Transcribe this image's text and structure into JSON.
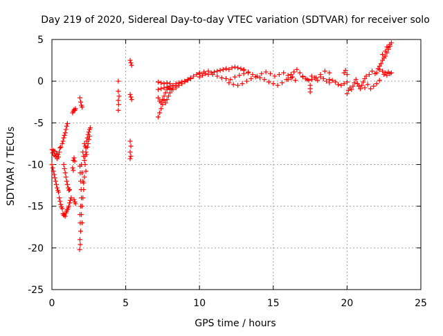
{
  "chart_data": {
    "type": "scatter",
    "title": "Day 219 of 2020, Sidereal Day-to-day VTEC variation (SDTVAR) for receiver solo",
    "xlabel": "GPS time / hours",
    "ylabel": "SDTVAR / TECUs",
    "xlim": [
      0,
      25
    ],
    "ylim": [
      -25,
      5
    ],
    "xticks": [
      0,
      5,
      10,
      15,
      20,
      25
    ],
    "yticks": [
      -25,
      -20,
      -15,
      -10,
      -5,
      0,
      5
    ],
    "grid": true,
    "marker": "+",
    "colors": {
      "series": "#ff0000",
      "grid": "#a0a0a0",
      "axis": "#000000"
    },
    "series": [
      {
        "name": "SDTVAR",
        "points": [
          [
            0.0,
            -8.2
          ],
          [
            0.05,
            -8.6
          ],
          [
            0.1,
            -8.3
          ],
          [
            0.15,
            -8.9
          ],
          [
            0.2,
            -8.4
          ],
          [
            0.25,
            -9.0
          ],
          [
            0.3,
            -8.7
          ],
          [
            0.35,
            -9.3
          ],
          [
            0.4,
            -8.8
          ],
          [
            0.45,
            -9.1
          ],
          [
            0.5,
            -8.5
          ],
          [
            0.55,
            -8.0
          ],
          [
            0.6,
            -7.9
          ],
          [
            0.0,
            -10.0
          ],
          [
            0.05,
            -10.4
          ],
          [
            0.1,
            -10.8
          ],
          [
            0.15,
            -11.2
          ],
          [
            0.2,
            -11.6
          ],
          [
            0.25,
            -12.0
          ],
          [
            0.3,
            -12.4
          ],
          [
            0.35,
            -12.8
          ],
          [
            0.4,
            -13.1
          ],
          [
            0.45,
            -13.3
          ],
          [
            0.5,
            -14.0
          ],
          [
            0.55,
            -14.4
          ],
          [
            0.6,
            -14.8
          ],
          [
            0.65,
            -15.1
          ],
          [
            0.7,
            -15.3
          ],
          [
            0.75,
            -15.9
          ],
          [
            0.8,
            -16.1
          ],
          [
            0.85,
            -16.0
          ],
          [
            0.9,
            -16.2
          ],
          [
            0.95,
            -15.8
          ],
          [
            1.0,
            -15.6
          ],
          [
            1.05,
            -15.4
          ],
          [
            1.1,
            -15.2
          ],
          [
            1.15,
            -15.0
          ],
          [
            1.2,
            -14.6
          ],
          [
            1.25,
            -14.3
          ],
          [
            1.3,
            -14.0
          ],
          [
            0.7,
            -7.5
          ],
          [
            0.75,
            -7.2
          ],
          [
            0.8,
            -6.8
          ],
          [
            0.85,
            -6.5
          ],
          [
            0.9,
            -6.2
          ],
          [
            0.95,
            -5.8
          ],
          [
            1.0,
            -5.4
          ],
          [
            1.05,
            -5.1
          ],
          [
            0.8,
            -10.0
          ],
          [
            0.85,
            -10.5
          ],
          [
            0.9,
            -11.0
          ],
          [
            0.95,
            -11.5
          ],
          [
            1.0,
            -12.0
          ],
          [
            1.05,
            -12.4
          ],
          [
            1.1,
            -12.8
          ],
          [
            1.15,
            -13.1
          ],
          [
            1.2,
            -13.0
          ],
          [
            1.4,
            -3.8
          ],
          [
            1.45,
            -3.6
          ],
          [
            1.5,
            -3.4
          ],
          [
            1.55,
            -3.5
          ],
          [
            1.6,
            -3.3
          ],
          [
            1.45,
            -9.5
          ],
          [
            1.5,
            -9.2
          ],
          [
            1.55,
            -9.6
          ],
          [
            1.4,
            -10.4
          ],
          [
            1.45,
            -10.7
          ],
          [
            1.5,
            -14.2
          ],
          [
            1.55,
            -14.5
          ],
          [
            1.6,
            -14.7
          ],
          [
            1.9,
            -2.0
          ],
          [
            1.95,
            -2.5
          ],
          [
            2.0,
            -2.9
          ],
          [
            2.05,
            -3.1
          ],
          [
            1.9,
            -10.2
          ],
          [
            1.92,
            -11.0
          ],
          [
            1.95,
            -12.0
          ],
          [
            1.98,
            -13.0
          ],
          [
            2.0,
            -14.0
          ],
          [
            1.95,
            -15.0
          ],
          [
            1.9,
            -16.0
          ],
          [
            1.92,
            -17.0
          ],
          [
            1.95,
            -18.0
          ],
          [
            1.9,
            -19.0
          ],
          [
            1.92,
            -19.6
          ],
          [
            1.88,
            -20.2
          ],
          [
            2.0,
            -10.0
          ],
          [
            2.05,
            -11.0
          ],
          [
            2.1,
            -12.0
          ],
          [
            2.15,
            -13.0
          ],
          [
            2.1,
            -14.0
          ],
          [
            2.05,
            -15.0
          ],
          [
            2.0,
            -16.0
          ],
          [
            2.05,
            -17.0
          ],
          [
            2.1,
            -8.5
          ],
          [
            2.15,
            -9.0
          ],
          [
            2.2,
            -9.5
          ],
          [
            2.25,
            -10.0
          ],
          [
            2.3,
            -10.8
          ],
          [
            2.2,
            -11.5
          ],
          [
            2.15,
            -12.2
          ],
          [
            2.2,
            -7.5
          ],
          [
            2.25,
            -7.8
          ],
          [
            2.3,
            -8.0
          ],
          [
            2.35,
            -7.2
          ],
          [
            2.4,
            -6.8
          ],
          [
            2.45,
            -6.4
          ],
          [
            2.5,
            -6.1
          ],
          [
            2.55,
            -5.8
          ],
          [
            2.6,
            -5.6
          ],
          [
            2.25,
            -9.0
          ],
          [
            2.3,
            -8.5
          ],
          [
            2.35,
            -8.8
          ],
          [
            2.4,
            -7.9
          ],
          [
            2.45,
            -7.5
          ],
          [
            2.5,
            -7.0
          ],
          [
            2.55,
            -6.6
          ],
          [
            4.5,
            0.0
          ],
          [
            4.5,
            -1.2
          ],
          [
            4.55,
            -1.8
          ],
          [
            4.5,
            -2.3
          ],
          [
            4.52,
            -2.8
          ],
          [
            4.5,
            -3.5
          ],
          [
            5.3,
            2.5
          ],
          [
            5.35,
            2.2
          ],
          [
            5.4,
            1.9
          ],
          [
            5.3,
            -1.6
          ],
          [
            5.35,
            -1.9
          ],
          [
            5.4,
            -2.2
          ],
          [
            5.3,
            -7.2
          ],
          [
            5.35,
            -7.8
          ],
          [
            5.3,
            -8.5
          ],
          [
            5.35,
            -9.0
          ],
          [
            5.3,
            -9.3
          ],
          [
            7.2,
            -4.3
          ],
          [
            7.3,
            -3.8
          ],
          [
            7.4,
            -3.3
          ],
          [
            7.5,
            -2.8
          ],
          [
            7.6,
            -2.3
          ],
          [
            7.7,
            -2.6
          ],
          [
            7.8,
            -2.2
          ],
          [
            7.9,
            -1.8
          ],
          [
            8.0,
            -1.4
          ],
          [
            8.1,
            -1.0
          ],
          [
            8.2,
            -0.8
          ],
          [
            8.4,
            -0.6
          ],
          [
            8.6,
            -0.5
          ],
          [
            8.8,
            -0.3
          ],
          [
            9.0,
            -0.1
          ],
          [
            9.2,
            0.1
          ],
          [
            9.4,
            0.4
          ],
          [
            9.6,
            0.6
          ],
          [
            9.8,
            0.8
          ],
          [
            10.0,
            1.0
          ],
          [
            7.2,
            -2.0
          ],
          [
            7.3,
            -2.4
          ],
          [
            7.4,
            -2.6
          ],
          [
            7.5,
            -2.2
          ],
          [
            7.6,
            -1.8
          ],
          [
            7.7,
            -1.4
          ],
          [
            7.8,
            -1.0
          ],
          [
            7.9,
            -0.8
          ],
          [
            8.0,
            -0.6
          ],
          [
            7.2,
            -0.1
          ],
          [
            7.4,
            -0.2
          ],
          [
            7.6,
            -0.3
          ],
          [
            7.8,
            -0.2
          ],
          [
            8.0,
            -0.3
          ],
          [
            8.2,
            -0.5
          ],
          [
            8.4,
            -0.3
          ],
          [
            8.6,
            -0.2
          ],
          [
            8.8,
            -0.1
          ],
          [
            9.0,
            0.0
          ],
          [
            9.2,
            0.2
          ],
          [
            9.4,
            0.3
          ],
          [
            7.2,
            -1.0
          ],
          [
            7.4,
            -0.9
          ],
          [
            7.6,
            -0.8
          ],
          [
            7.8,
            -0.7
          ],
          [
            8.0,
            -0.9
          ],
          [
            8.2,
            -1.0
          ],
          [
            8.4,
            -0.8
          ],
          [
            10.0,
            0.5
          ],
          [
            10.2,
            0.7
          ],
          [
            10.4,
            0.9
          ],
          [
            10.6,
            0.8
          ],
          [
            10.8,
            1.0
          ],
          [
            11.0,
            1.1
          ],
          [
            11.2,
            1.2
          ],
          [
            11.4,
            1.3
          ],
          [
            11.6,
            1.4
          ],
          [
            11.8,
            1.5
          ],
          [
            12.0,
            1.4
          ],
          [
            12.2,
            1.6
          ],
          [
            12.4,
            1.7
          ],
          [
            12.6,
            1.6
          ],
          [
            12.8,
            1.5
          ],
          [
            13.0,
            1.4
          ],
          [
            10.0,
            0.9
          ],
          [
            10.3,
            1.1
          ],
          [
            10.6,
            1.2
          ],
          [
            10.9,
            0.8
          ],
          [
            11.2,
            0.6
          ],
          [
            11.5,
            0.4
          ],
          [
            11.8,
            0.3
          ],
          [
            12.1,
            0.2
          ],
          [
            12.4,
            0.5
          ],
          [
            12.7,
            0.7
          ],
          [
            13.0,
            0.9
          ],
          [
            13.3,
            1.0
          ],
          [
            12.0,
            -0.2
          ],
          [
            12.3,
            -0.4
          ],
          [
            12.6,
            -0.5
          ],
          [
            12.9,
            -0.3
          ],
          [
            13.2,
            0.0
          ],
          [
            13.5,
            0.3
          ],
          [
            13.8,
            0.5
          ],
          [
            14.1,
            0.4
          ],
          [
            14.4,
            0.2
          ],
          [
            14.7,
            -0.1
          ],
          [
            15.0,
            -0.3
          ],
          [
            15.3,
            -0.5
          ],
          [
            15.6,
            -0.2
          ],
          [
            15.9,
            0.2
          ],
          [
            16.2,
            0.4
          ],
          [
            16.5,
            0.1
          ],
          [
            13.0,
            1.3
          ],
          [
            13.3,
            1.1
          ],
          [
            13.6,
            0.8
          ],
          [
            13.9,
            0.6
          ],
          [
            14.2,
            0.9
          ],
          [
            14.5,
            1.1
          ],
          [
            14.8,
            0.9
          ],
          [
            15.1,
            0.6
          ],
          [
            15.4,
            0.8
          ],
          [
            15.7,
            1.0
          ],
          [
            16.0,
            0.7
          ],
          [
            16.3,
            0.5
          ],
          [
            16.0,
            0.2
          ],
          [
            16.2,
            0.8
          ],
          [
            16.4,
            1.1
          ],
          [
            16.6,
            1.4
          ],
          [
            16.8,
            1.0
          ],
          [
            17.0,
            0.6
          ],
          [
            17.2,
            0.3
          ],
          [
            17.4,
            0.1
          ],
          [
            17.6,
            0.2
          ],
          [
            17.8,
            0.4
          ],
          [
            18.0,
            0.1
          ],
          [
            18.2,
            0.5
          ],
          [
            18.4,
            0.3
          ],
          [
            18.6,
            0.0
          ],
          [
            18.8,
            0.2
          ],
          [
            17.0,
            0.5
          ],
          [
            17.3,
            0.2
          ],
          [
            17.6,
            0.6
          ],
          [
            17.9,
            0.4
          ],
          [
            18.2,
            0.8
          ],
          [
            18.5,
            1.2
          ],
          [
            18.8,
            1.0
          ],
          [
            17.5,
            -0.5
          ],
          [
            17.5,
            -0.9
          ],
          [
            17.5,
            -1.3
          ],
          [
            18.8,
            -0.2
          ],
          [
            19.0,
            0.1
          ],
          [
            19.2,
            -0.1
          ],
          [
            19.4,
            -0.4
          ],
          [
            19.6,
            -0.5
          ],
          [
            19.8,
            -0.3
          ],
          [
            20.0,
            -0.1
          ],
          [
            19.8,
            1.0
          ],
          [
            19.9,
            1.3
          ],
          [
            20.0,
            0.8
          ],
          [
            20.0,
            -1.5
          ],
          [
            20.1,
            -1.1
          ],
          [
            20.2,
            -0.8
          ],
          [
            20.3,
            -1.0
          ],
          [
            20.4,
            -0.6
          ],
          [
            20.5,
            -0.2
          ],
          [
            20.6,
            0.2
          ],
          [
            20.7,
            -0.3
          ],
          [
            20.8,
            -0.6
          ],
          [
            20.9,
            -0.9
          ],
          [
            21.0,
            -0.5
          ],
          [
            21.1,
            -0.1
          ],
          [
            21.2,
            0.3
          ],
          [
            21.3,
            0.6
          ],
          [
            21.2,
            -0.8
          ],
          [
            21.4,
            -0.4
          ],
          [
            21.6,
            -0.9
          ],
          [
            21.8,
            -0.6
          ],
          [
            22.0,
            -0.3
          ],
          [
            22.2,
            0.1
          ],
          [
            21.5,
            0.8
          ],
          [
            21.7,
            1.2
          ],
          [
            21.9,
            0.9
          ],
          [
            22.0,
            1.0
          ],
          [
            22.1,
            1.5
          ],
          [
            22.2,
            1.8
          ],
          [
            22.3,
            2.1
          ],
          [
            22.4,
            2.5
          ],
          [
            22.5,
            2.8
          ],
          [
            22.6,
            3.0
          ],
          [
            22.7,
            3.4
          ],
          [
            22.8,
            3.8
          ],
          [
            22.9,
            4.2
          ],
          [
            23.0,
            4.6
          ],
          [
            22.2,
            1.4
          ],
          [
            22.4,
            1.2
          ],
          [
            22.6,
            1.0
          ],
          [
            22.8,
            1.1
          ],
          [
            23.0,
            1.0
          ],
          [
            22.5,
            0.8
          ],
          [
            22.7,
            0.7
          ],
          [
            22.9,
            0.9
          ],
          [
            22.4,
            3.2
          ],
          [
            22.6,
            3.6
          ],
          [
            22.8,
            4.0
          ],
          [
            22.9,
            4.4
          ],
          [
            22.7,
            4.1
          ]
        ]
      }
    ]
  }
}
